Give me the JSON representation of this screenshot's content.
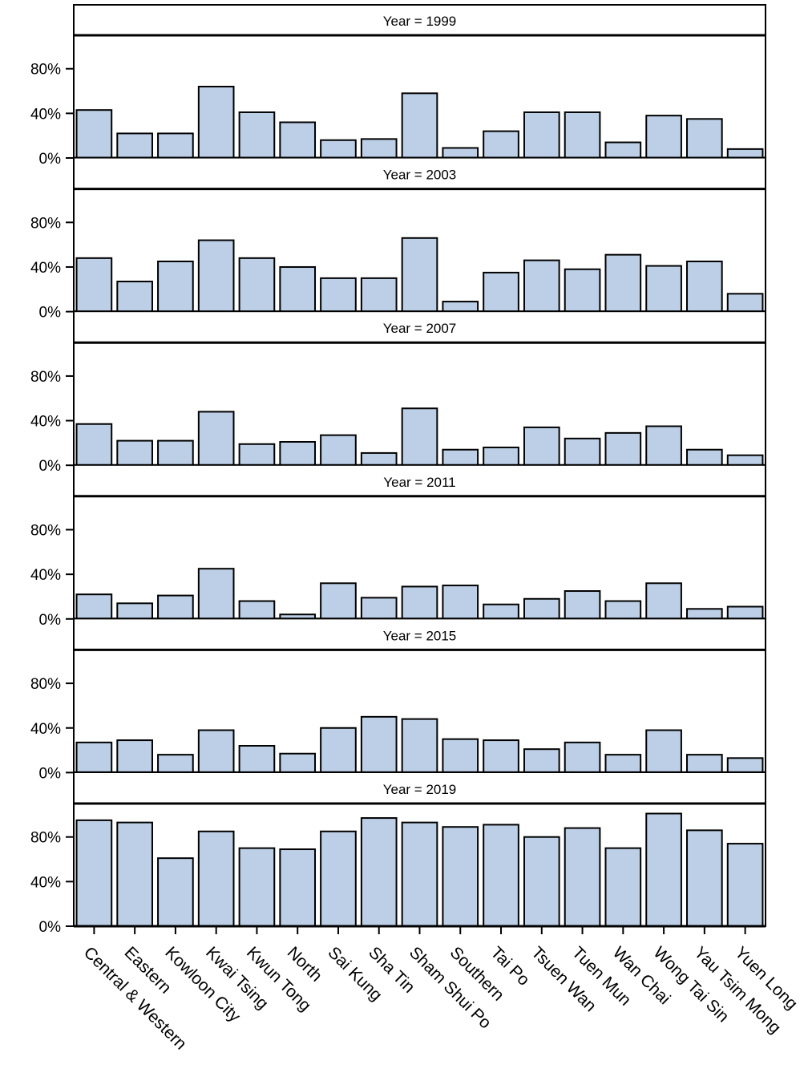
{
  "chart_data": {
    "type": "bar",
    "panel_label_prefix": "Year = ",
    "categories": [
      "Central & Western",
      "Eastern",
      "Kowloon City",
      "Kwai Tsing",
      "Kwun Tong",
      "North",
      "Sai Kung",
      "Sha Tin",
      "Sham Shui Po",
      "Southern",
      "Tai Po",
      "Tsuen Wan",
      "Tuen Mun",
      "Wan Chai",
      "Wong Tai Sin",
      "Yau Tsim Mong",
      "Yuen Long"
    ],
    "yticks": [
      "0%",
      "40%",
      "80%"
    ],
    "ytick_values": [
      0,
      40,
      80
    ],
    "ylim": [
      0,
      110
    ],
    "grid": false,
    "legend": "none",
    "bar_color": "#bccfe6",
    "panels": [
      {
        "year": "1999",
        "values": [
          43,
          22,
          22,
          64,
          41,
          32,
          16,
          17,
          58,
          9,
          24,
          41,
          41,
          14,
          38,
          35,
          8
        ]
      },
      {
        "year": "2003",
        "values": [
          48,
          27,
          45,
          64,
          48,
          40,
          30,
          30,
          66,
          9,
          35,
          46,
          38,
          51,
          41,
          45,
          16
        ]
      },
      {
        "year": "2007",
        "values": [
          37,
          22,
          22,
          48,
          19,
          21,
          27,
          11,
          51,
          14,
          16,
          34,
          24,
          29,
          35,
          14,
          9
        ]
      },
      {
        "year": "2011",
        "values": [
          22,
          14,
          21,
          45,
          16,
          4,
          32,
          19,
          29,
          30,
          13,
          18,
          25,
          16,
          32,
          9,
          11
        ]
      },
      {
        "year": "2015",
        "values": [
          27,
          29,
          16,
          38,
          24,
          17,
          40,
          50,
          48,
          30,
          29,
          21,
          27,
          16,
          38,
          16,
          13
        ]
      },
      {
        "year": "2019",
        "values": [
          95,
          93,
          61,
          85,
          70,
          69,
          85,
          97,
          93,
          89,
          91,
          80,
          88,
          70,
          101,
          86,
          74
        ]
      }
    ]
  }
}
